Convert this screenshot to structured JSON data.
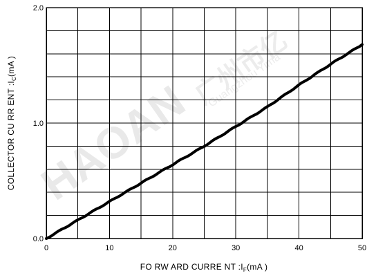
{
  "chart_data": {
    "type": "line",
    "x_axis": {
      "label_main": "FO RW ARD CURRE NT :I",
      "label_sub": "F",
      "label_unit": "(mA )",
      "range": [
        0,
        50
      ],
      "ticks": [
        0,
        10,
        20,
        30,
        40,
        50
      ],
      "tick_labels": [
        "0",
        "10",
        "20",
        "30",
        "40",
        "50"
      ],
      "minor_step": 5
    },
    "y_axis": {
      "label_main": "COLLECTOR CU RR ENT :I",
      "label_sub": "C",
      "label_unit": "(mA )",
      "range": [
        0,
        2
      ],
      "ticks": [
        0,
        1,
        2
      ],
      "tick_labels": [
        "0.0",
        "1.0",
        "2.0"
      ],
      "minor_step": 0.2
    },
    "grid": true,
    "legend": "none",
    "series": [
      {
        "x": [
          0,
          5,
          10,
          15,
          20,
          25,
          30,
          35,
          40,
          45,
          50
        ],
        "y": [
          0.0,
          0.16,
          0.32,
          0.48,
          0.64,
          0.8,
          0.97,
          1.14,
          1.33,
          1.51,
          1.68
        ]
      }
    ],
    "colors": {
      "line": "#000000",
      "grid": "#000000",
      "watermark": "#e6e6e6"
    }
  },
  "watermark": {
    "brand": "HAOAN",
    "cn": "广州市亿",
    "en": "Guangzhou Yima"
  }
}
